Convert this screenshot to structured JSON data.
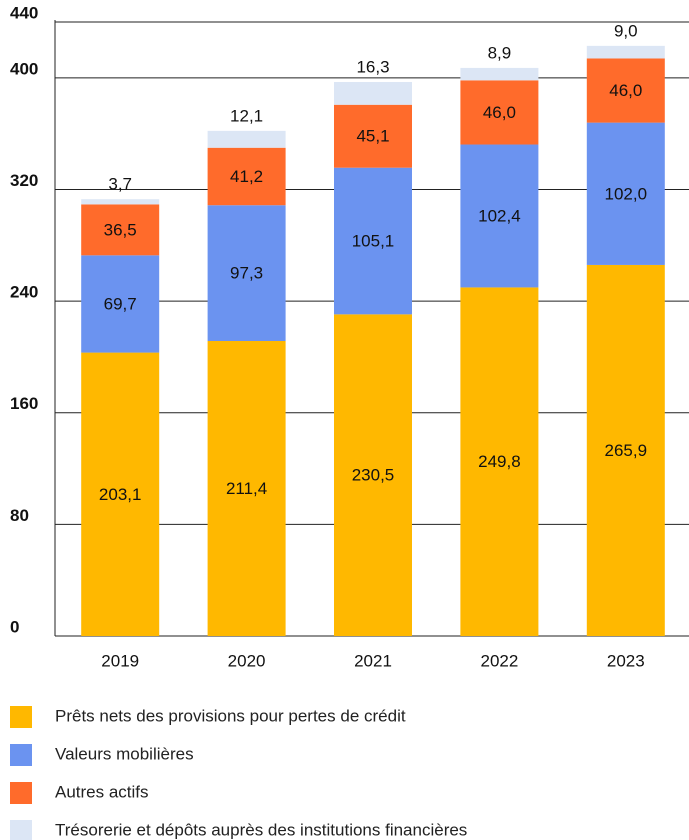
{
  "chart_data": {
    "type": "stacked_bar",
    "categories": [
      "2019",
      "2020",
      "2021",
      "2022",
      "2023"
    ],
    "series": [
      {
        "name": "Prêts nets des provisions pour pertes de crédit",
        "color": "#ffb800",
        "values": [
          203.1,
          211.4,
          230.5,
          249.8,
          265.9
        ],
        "value_labels": [
          "203,1",
          "211,4",
          "230,5",
          "249,8",
          "265,9"
        ]
      },
      {
        "name": "Valeurs mobilières",
        "color": "#6b93f0",
        "values": [
          69.7,
          97.3,
          105.1,
          102.4,
          102.0
        ],
        "value_labels": [
          "69,7",
          "97,3",
          "105,1",
          "102,4",
          "102,0"
        ]
      },
      {
        "name": "Autres actifs",
        "color": "#ff6b2b",
        "values": [
          36.5,
          41.2,
          45.1,
          46.0,
          46.0
        ],
        "value_labels": [
          "36,5",
          "41,2",
          "45,1",
          "46,0",
          "46,0"
        ]
      },
      {
        "name": "Trésorerie et dépôts auprès des institutions financières",
        "color": "#dce6f5",
        "values": [
          3.7,
          12.1,
          16.3,
          8.9,
          9.0
        ],
        "value_labels": [
          "3,7",
          "12,1",
          "16,3",
          "8,9",
          "9,0"
        ]
      }
    ],
    "ylim": [
      0,
      440
    ],
    "yticks": [
      0,
      80,
      160,
      240,
      320,
      400,
      440
    ],
    "grid": true
  }
}
